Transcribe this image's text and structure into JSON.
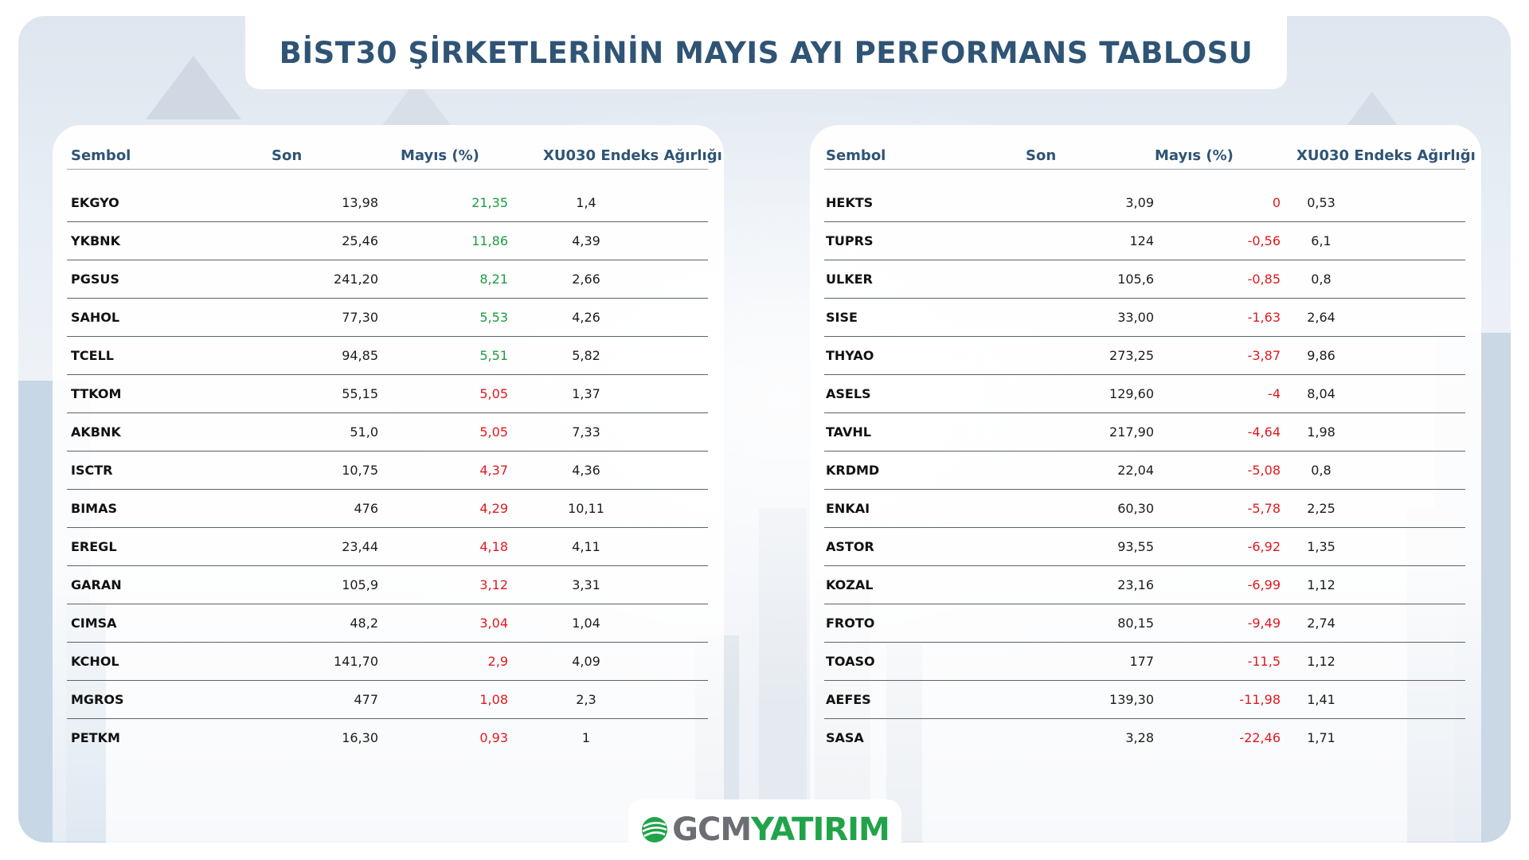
{
  "title": "BİST30 ŞİRKETLERİNİN MAYIS AYI PERFORMANS TABLOSU",
  "colors": {
    "title": "#2f5475",
    "positive": "#1a9e3f",
    "negative": "#e0191f",
    "brand_green": "#22a34a",
    "brand_gray": "#6b6e72"
  },
  "columns": [
    "Sembol",
    "Son",
    "Mayıs (%)",
    "XU030 Endeks Ağırlığı"
  ],
  "left_table": [
    {
      "sembol": "EKGYO",
      "son": "13,98",
      "mayis": "21,35",
      "agirlik": "1,4",
      "trend": "pos"
    },
    {
      "sembol": "YKBNK",
      "son": "25,46",
      "mayis": "11,86",
      "agirlik": "4,39",
      "trend": "pos"
    },
    {
      "sembol": "PGSUS",
      "son": "241,20",
      "mayis": "8,21",
      "agirlik": "2,66",
      "trend": "pos"
    },
    {
      "sembol": "SAHOL",
      "son": "77,30",
      "mayis": "5,53",
      "agirlik": "4,26",
      "trend": "pos"
    },
    {
      "sembol": "TCELL",
      "son": "94,85",
      "mayis": "5,51",
      "agirlik": "5,82",
      "trend": "pos"
    },
    {
      "sembol": "TTKOM",
      "son": "55,15",
      "mayis": "5,05",
      "agirlik": "1,37",
      "trend": "neg"
    },
    {
      "sembol": "AKBNK",
      "son": "51,0",
      "mayis": "5,05",
      "agirlik": "7,33",
      "trend": "neg"
    },
    {
      "sembol": "ISCTR",
      "son": "10,75",
      "mayis": "4,37",
      "agirlik": "4,36",
      "trend": "neg"
    },
    {
      "sembol": "BIMAS",
      "son": "476",
      "mayis": "4,29",
      "agirlik": "10,11",
      "trend": "neg"
    },
    {
      "sembol": "EREGL",
      "son": "23,44",
      "mayis": "4,18",
      "agirlik": "4,11",
      "trend": "neg"
    },
    {
      "sembol": "GARAN",
      "son": "105,9",
      "mayis": "3,12",
      "agirlik": "3,31",
      "trend": "neg"
    },
    {
      "sembol": "CIMSA",
      "son": "48,2",
      "mayis": "3,04",
      "agirlik": "1,04",
      "trend": "neg"
    },
    {
      "sembol": "KCHOL",
      "son": "141,70",
      "mayis": "2,9",
      "agirlik": "4,09",
      "trend": "neg"
    },
    {
      "sembol": "MGROS",
      "son": "477",
      "mayis": "1,08",
      "agirlik": "2,3",
      "trend": "neg"
    },
    {
      "sembol": "PETKM",
      "son": "16,30",
      "mayis": "0,93",
      "agirlik": "1",
      "trend": "neg"
    }
  ],
  "right_table": [
    {
      "sembol": "HEKTS",
      "son": "3,09",
      "mayis": "0",
      "agirlik": "0,53",
      "trend": "neg"
    },
    {
      "sembol": "TUPRS",
      "son": "124",
      "mayis": "-0,56",
      "agirlik": "6,1",
      "trend": "neg"
    },
    {
      "sembol": "ULKER",
      "son": "105,6",
      "mayis": "-0,85",
      "agirlik": "0,8",
      "trend": "neg"
    },
    {
      "sembol": "SISE",
      "son": "33,00",
      "mayis": "-1,63",
      "agirlik": "2,64",
      "trend": "neg"
    },
    {
      "sembol": "THYAO",
      "son": "273,25",
      "mayis": "-3,87",
      "agirlik": "9,86",
      "trend": "neg"
    },
    {
      "sembol": "ASELS",
      "son": "129,60",
      "mayis": "-4",
      "agirlik": "8,04",
      "trend": "neg"
    },
    {
      "sembol": "TAVHL",
      "son": "217,90",
      "mayis": "-4,64",
      "agirlik": "1,98",
      "trend": "neg"
    },
    {
      "sembol": "KRDMD",
      "son": "22,04",
      "mayis": "-5,08",
      "agirlik": "0,8",
      "trend": "neg"
    },
    {
      "sembol": "ENKAI",
      "son": "60,30",
      "mayis": "-5,78",
      "agirlik": "2,25",
      "trend": "neg"
    },
    {
      "sembol": "ASTOR",
      "son": "93,55",
      "mayis": "-6,92",
      "agirlik": "1,35",
      "trend": "neg"
    },
    {
      "sembol": "KOZAL",
      "son": "23,16",
      "mayis": "-6,99",
      "agirlik": "1,12",
      "trend": "neg"
    },
    {
      "sembol": "FROTO",
      "son": "80,15",
      "mayis": "-9,49",
      "agirlik": "2,74",
      "trend": "neg"
    },
    {
      "sembol": "TOASO",
      "son": "177",
      "mayis": "-11,5",
      "agirlik": "1,12",
      "trend": "neg"
    },
    {
      "sembol": "AEFES",
      "son": "139,30",
      "mayis": "-11,98",
      "agirlik": "1,41",
      "trend": "neg"
    },
    {
      "sembol": "SASA",
      "son": "3,28",
      "mayis": "-22,46",
      "agirlik": "1,71",
      "trend": "neg"
    }
  ],
  "logo": {
    "part1": "GCM",
    "part2": "YATIRIM",
    "icon": "globe-swirl-icon"
  }
}
